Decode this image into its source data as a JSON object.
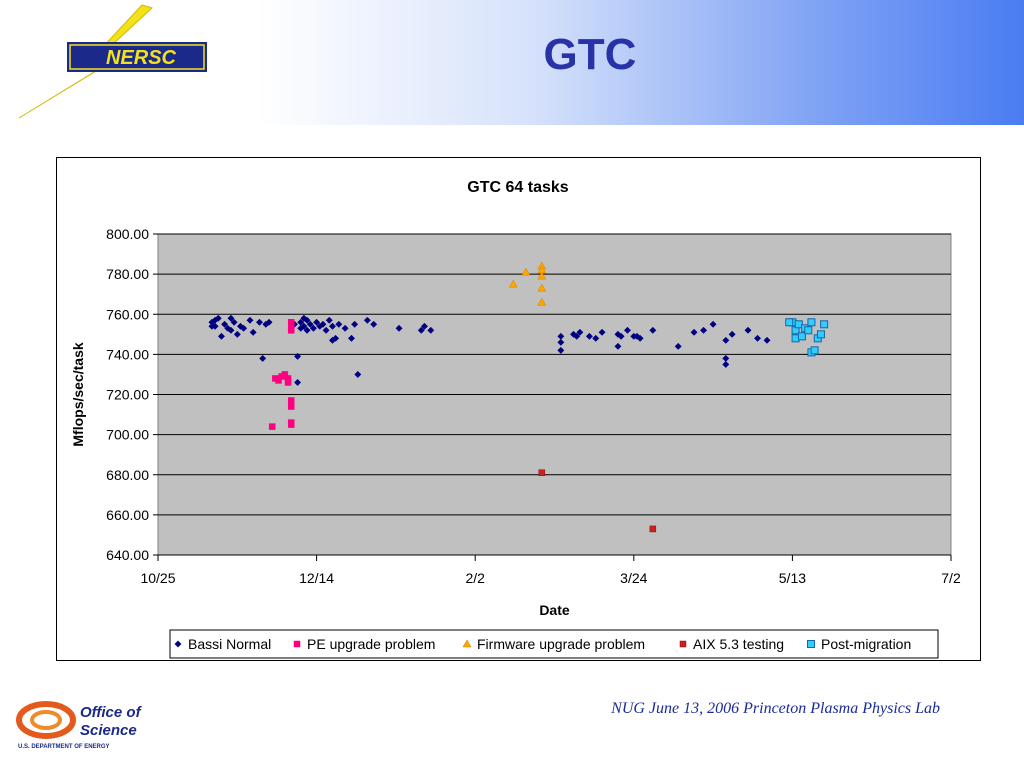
{
  "slide": {
    "title": "GTC",
    "footer": "NUG June 13, 2006 Princeton Plasma Physics Lab"
  },
  "logos": {
    "nersc": "NERSC",
    "office_of_science_line1": "Office of",
    "office_of_science_line2": "Science",
    "office_of_science_sub": "U.S. DEPARTMENT OF ENERGY"
  },
  "colors": {
    "title": "#2733a6",
    "plot_bg": "#c0c0c0",
    "bassi": "#000080",
    "pe": "#ff0080",
    "firmware": "#ffa500",
    "aix": "#cc1f1f",
    "post": "#33ccff"
  },
  "chart_data": {
    "type": "scatter",
    "title": "GTC 64 tasks",
    "xlabel": "Date",
    "ylabel": "Mflops/sec/task",
    "x_ticks": [
      "10/25",
      "12/14",
      "2/2",
      "3/24",
      "5/13",
      "7/2"
    ],
    "x_range": [
      "2005-10-25",
      "2006-07-02"
    ],
    "y_ticks": [
      "640.00",
      "660.00",
      "680.00",
      "700.00",
      "720.00",
      "740.00",
      "760.00",
      "780.00",
      "800.00"
    ],
    "ylim": [
      640,
      800
    ],
    "grid": "horizontal",
    "legend_position": "bottom",
    "series": [
      {
        "name": "Bassi Normal",
        "marker": "diamond",
        "points": [
          [
            "2005-11-11",
            756
          ],
          [
            "2005-11-11",
            754
          ],
          [
            "2005-11-12",
            757
          ],
          [
            "2005-11-12",
            754
          ],
          [
            "2005-11-13",
            758
          ],
          [
            "2005-11-14",
            749
          ],
          [
            "2005-11-15",
            755
          ],
          [
            "2005-11-16",
            753
          ],
          [
            "2005-11-17",
            758
          ],
          [
            "2005-11-17",
            752
          ],
          [
            "2005-11-18",
            756
          ],
          [
            "2005-11-19",
            750
          ],
          [
            "2005-11-20",
            754
          ],
          [
            "2005-11-21",
            753
          ],
          [
            "2005-11-23",
            757
          ],
          [
            "2005-11-24",
            751
          ],
          [
            "2005-11-26",
            756
          ],
          [
            "2005-11-27",
            738
          ],
          [
            "2005-11-28",
            755
          ],
          [
            "2005-11-29",
            756
          ],
          [
            "2005-12-06",
            752
          ],
          [
            "2005-12-07",
            755
          ],
          [
            "2005-12-08",
            739
          ],
          [
            "2005-12-08",
            726
          ],
          [
            "2005-12-09",
            753
          ],
          [
            "2005-12-09",
            756
          ],
          [
            "2005-12-10",
            754
          ],
          [
            "2005-12-10",
            758
          ],
          [
            "2005-12-11",
            752
          ],
          [
            "2005-12-11",
            757
          ],
          [
            "2005-12-12",
            755
          ],
          [
            "2005-12-13",
            753
          ],
          [
            "2005-12-14",
            756
          ],
          [
            "2005-12-15",
            754
          ],
          [
            "2005-12-16",
            755
          ],
          [
            "2005-12-17",
            752
          ],
          [
            "2005-12-18",
            757
          ],
          [
            "2005-12-19",
            747
          ],
          [
            "2005-12-19",
            754
          ],
          [
            "2005-12-20",
            748
          ],
          [
            "2005-12-21",
            755
          ],
          [
            "2005-12-23",
            753
          ],
          [
            "2005-12-25",
            748
          ],
          [
            "2005-12-26",
            755
          ],
          [
            "2005-12-27",
            730
          ],
          [
            "2005-12-30",
            757
          ],
          [
            "2006-01-01",
            755
          ],
          [
            "2006-01-09",
            753
          ],
          [
            "2006-01-16",
            752
          ],
          [
            "2006-01-17",
            754
          ],
          [
            "2006-01-19",
            752
          ],
          [
            "2006-02-29",
            742
          ],
          [
            "2006-02-29",
            746
          ],
          [
            "2006-03-01",
            749
          ],
          [
            "2006-03-05",
            750
          ],
          [
            "2006-03-06",
            749
          ],
          [
            "2006-03-07",
            751
          ],
          [
            "2006-03-10",
            749
          ],
          [
            "2006-03-12",
            748
          ],
          [
            "2006-03-14",
            751
          ],
          [
            "2006-03-19",
            750
          ],
          [
            "2006-03-19",
            744
          ],
          [
            "2006-03-20",
            749
          ],
          [
            "2006-03-22",
            752
          ],
          [
            "2006-03-24",
            749
          ],
          [
            "2006-03-25",
            749
          ],
          [
            "2006-03-26",
            748
          ],
          [
            "2006-03-30",
            752
          ],
          [
            "2006-04-07",
            744
          ],
          [
            "2006-04-12",
            751
          ],
          [
            "2006-04-15",
            752
          ],
          [
            "2006-04-18",
            755
          ],
          [
            "2006-04-22",
            747
          ],
          [
            "2006-04-22",
            738
          ],
          [
            "2006-04-22",
            735
          ],
          [
            "2006-04-24",
            750
          ],
          [
            "2006-04-29",
            752
          ],
          [
            "2006-05-02",
            748
          ],
          [
            "2006-05-05",
            747
          ]
        ]
      },
      {
        "name": "PE upgrade problem",
        "marker": "square",
        "points": [
          [
            "2005-11-30",
            704
          ],
          [
            "2005-12-01",
            728
          ],
          [
            "2005-12-02",
            727
          ],
          [
            "2005-12-03",
            729
          ],
          [
            "2005-12-04",
            730
          ],
          [
            "2005-12-05",
            726
          ],
          [
            "2005-12-05",
            728
          ],
          [
            "2005-12-06",
            717
          ],
          [
            "2005-12-06",
            714
          ],
          [
            "2005-12-06",
            706
          ],
          [
            "2005-12-06",
            705
          ],
          [
            "2005-12-06",
            752
          ],
          [
            "2005-12-06",
            754
          ],
          [
            "2005-12-06",
            756
          ]
        ]
      },
      {
        "name": "Firmware upgrade problem",
        "marker": "triangle",
        "points": [
          [
            "2006-02-14",
            775
          ],
          [
            "2006-02-18",
            781
          ],
          [
            "2006-02-23",
            784
          ],
          [
            "2006-02-23",
            782
          ],
          [
            "2006-02-23",
            779
          ],
          [
            "2006-02-23",
            773
          ],
          [
            "2006-02-23",
            766
          ]
        ]
      },
      {
        "name": "AIX 5.3 testing",
        "marker": "square",
        "points": [
          [
            "2006-02-23",
            681
          ],
          [
            "2006-03-30",
            653
          ]
        ]
      },
      {
        "name": "Post-migration",
        "marker": "square-open",
        "points": [
          [
            "2006-05-13",
            756
          ],
          [
            "2006-05-14",
            752
          ],
          [
            "2006-05-14",
            748
          ],
          [
            "2006-05-15",
            755
          ],
          [
            "2006-05-16",
            749
          ],
          [
            "2006-05-17",
            753
          ],
          [
            "2006-05-18",
            752
          ],
          [
            "2006-05-19",
            756
          ],
          [
            "2006-05-19",
            741
          ],
          [
            "2006-05-20",
            742
          ],
          [
            "2006-05-21",
            748
          ],
          [
            "2006-05-22",
            750
          ],
          [
            "2006-05-23",
            755
          ],
          [
            "2006-05-12",
            756
          ]
        ]
      }
    ]
  }
}
